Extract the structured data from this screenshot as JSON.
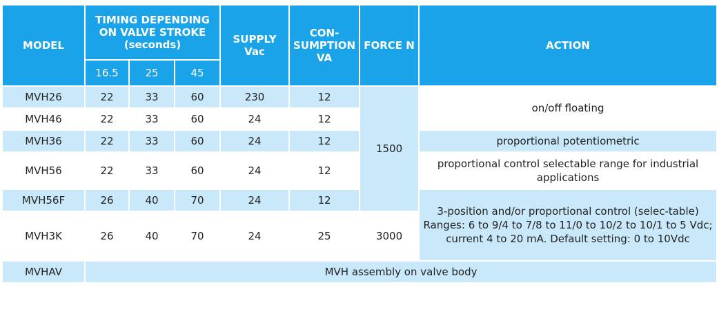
{
  "headers": {
    "model": "MODEL",
    "timing": "TIMING DEPENDING ON VALVE STROKE (seconds)",
    "supply": "SUPPLY Vac",
    "consumption": "CON- SUMPTION VA",
    "force": "FORCE N",
    "action": "ACTION",
    "strokes": [
      "16.5",
      "25",
      "45"
    ]
  },
  "rows": [
    {
      "model": "MVH26",
      "t1": "22",
      "t2": "33",
      "t3": "60",
      "supply": "230",
      "va": "12"
    },
    {
      "model": "MVH46",
      "t1": "22",
      "t2": "33",
      "t3": "60",
      "supply": "24",
      "va": "12"
    },
    {
      "model": "MVH36",
      "t1": "22",
      "t2": "33",
      "t3": "60",
      "supply": "24",
      "va": "12"
    },
    {
      "model": "MVH56",
      "t1": "22",
      "t2": "33",
      "t3": "60",
      "supply": "24",
      "va": "12"
    },
    {
      "model": "MVH56F",
      "t1": "26",
      "t2": "40",
      "t3": "70",
      "supply": "24",
      "va": "12"
    },
    {
      "model": "MVH3K",
      "t1": "26",
      "t2": "40",
      "t3": "70",
      "supply": "24",
      "va": "25"
    },
    {
      "model": "MVHAV"
    }
  ],
  "force": {
    "group1": "1500",
    "group2": "3000"
  },
  "actions": {
    "onoff": "on/off floating",
    "potentiometric": "proportional potentiometric",
    "selectable": "proportional control selectable range for industrial applications",
    "threeposition": "3-position and/or proportional control (selec-table) Ranges: 6 to 9/4 to 7/8 to 11/0 to 10/2 to 10/1 to 5 Vdc; current 4 to 20 mA. Default setting: 0 to 10Vdc"
  },
  "assembly": "MVH assembly on valve body"
}
